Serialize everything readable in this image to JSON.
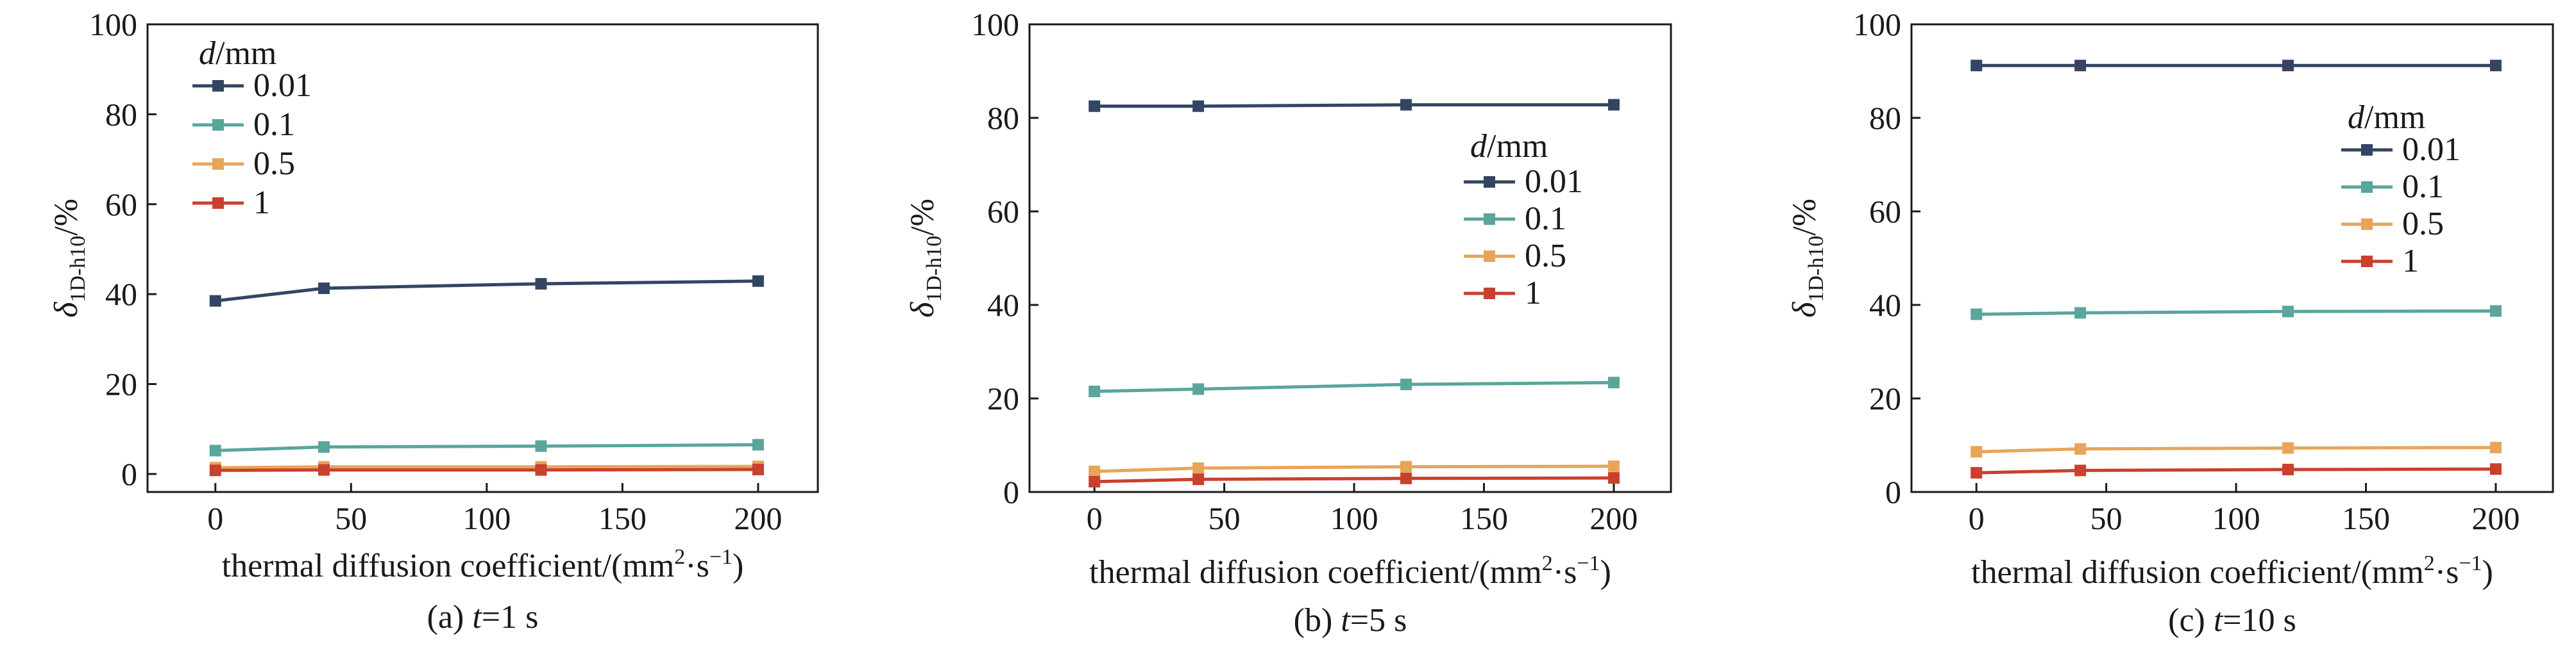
{
  "colors": {
    "d_0.01": "#344563",
    "d_0.1": "#5aa59c",
    "d_0.5": "#e8a55a",
    "d_1": "#c9402e"
  },
  "chart_data": [
    {
      "type": "line",
      "caption_prefix": "(a) ",
      "caption_var": "t",
      "caption_suffix": "=1 s",
      "ylabel_symbol": "δ",
      "ylabel_sub": "1D-h10",
      "ylabel_unit": "/%",
      "xlabel_main": "thermal diffusion coefficient/(mm",
      "xlabel_sup1": "2",
      "xlabel_mid": "·s",
      "xlabel_sup2": "−1",
      "xlabel_end": ")",
      "x": [
        0,
        40,
        120,
        200
      ],
      "xlim": [
        -25,
        222
      ],
      "xticks": [
        0,
        50,
        100,
        150,
        200
      ],
      "ylim": [
        -4,
        100
      ],
      "yticks": [
        0,
        20,
        40,
        60,
        80,
        100
      ],
      "legend_title_var": "d",
      "legend_title_unit": "/mm",
      "legend_position": "top-left",
      "series": [
        {
          "name": "0.01",
          "color_key": "d_0.01",
          "values": [
            38.5,
            41.3,
            42.3,
            42.9
          ]
        },
        {
          "name": "0.1",
          "color_key": "d_0.1",
          "values": [
            5.2,
            6.0,
            6.2,
            6.5
          ]
        },
        {
          "name": "0.5",
          "color_key": "d_0.5",
          "values": [
            1.4,
            1.6,
            1.6,
            1.7
          ]
        },
        {
          "name": "1",
          "color_key": "d_1",
          "values": [
            0.8,
            0.9,
            0.9,
            1.0
          ]
        }
      ]
    },
    {
      "type": "line",
      "caption_prefix": "(b) ",
      "caption_var": "t",
      "caption_suffix": "=5 s",
      "ylabel_symbol": "δ",
      "ylabel_sub": "1D-h10",
      "ylabel_unit": "/%",
      "xlabel_main": "thermal diffusion coefficient/(mm",
      "xlabel_sup1": "2",
      "xlabel_mid": "·s",
      "xlabel_sup2": "−1",
      "xlabel_end": ")",
      "x": [
        0,
        40,
        120,
        200
      ],
      "xlim": [
        -25,
        222
      ],
      "xticks": [
        0,
        50,
        100,
        150,
        200
      ],
      "ylim": [
        0,
        100
      ],
      "yticks": [
        0,
        20,
        40,
        60,
        80,
        100
      ],
      "legend_title_var": "d",
      "legend_title_unit": "/mm",
      "legend_position": "right",
      "series": [
        {
          "name": "0.01",
          "color_key": "d_0.01",
          "values": [
            82.5,
            82.5,
            82.8,
            82.8
          ]
        },
        {
          "name": "0.1",
          "color_key": "d_0.1",
          "values": [
            21.5,
            22.0,
            23.0,
            23.4
          ]
        },
        {
          "name": "0.5",
          "color_key": "d_0.5",
          "values": [
            4.4,
            5.1,
            5.4,
            5.5
          ]
        },
        {
          "name": "1",
          "color_key": "d_1",
          "values": [
            2.2,
            2.7,
            2.9,
            3.0
          ]
        }
      ]
    },
    {
      "type": "line",
      "caption_prefix": "(c) ",
      "caption_var": "t",
      "caption_suffix": "=10 s",
      "ylabel_symbol": "δ",
      "ylabel_sub": "1D-h10",
      "ylabel_unit": "/%",
      "xlabel_main": "thermal diffusion coefficient/(mm",
      "xlabel_sup1": "2",
      "xlabel_mid": "·s",
      "xlabel_sup2": "−1",
      "xlabel_end": ")",
      "x": [
        0,
        40,
        120,
        200
      ],
      "xlim": [
        -25,
        222
      ],
      "xticks": [
        0,
        50,
        100,
        150,
        200
      ],
      "ylim": [
        0,
        100
      ],
      "yticks": [
        0,
        20,
        40,
        60,
        80,
        100
      ],
      "legend_title_var": "d",
      "legend_title_unit": "/mm",
      "legend_position": "top-right",
      "series": [
        {
          "name": "0.01",
          "color_key": "d_0.01",
          "values": [
            91.2,
            91.2,
            91.2,
            91.2
          ]
        },
        {
          "name": "0.1",
          "color_key": "d_0.1",
          "values": [
            38.0,
            38.3,
            38.6,
            38.7
          ]
        },
        {
          "name": "0.5",
          "color_key": "d_0.5",
          "values": [
            8.6,
            9.2,
            9.4,
            9.5
          ]
        },
        {
          "name": "1",
          "color_key": "d_1",
          "values": [
            4.1,
            4.6,
            4.8,
            4.9
          ]
        }
      ]
    }
  ]
}
